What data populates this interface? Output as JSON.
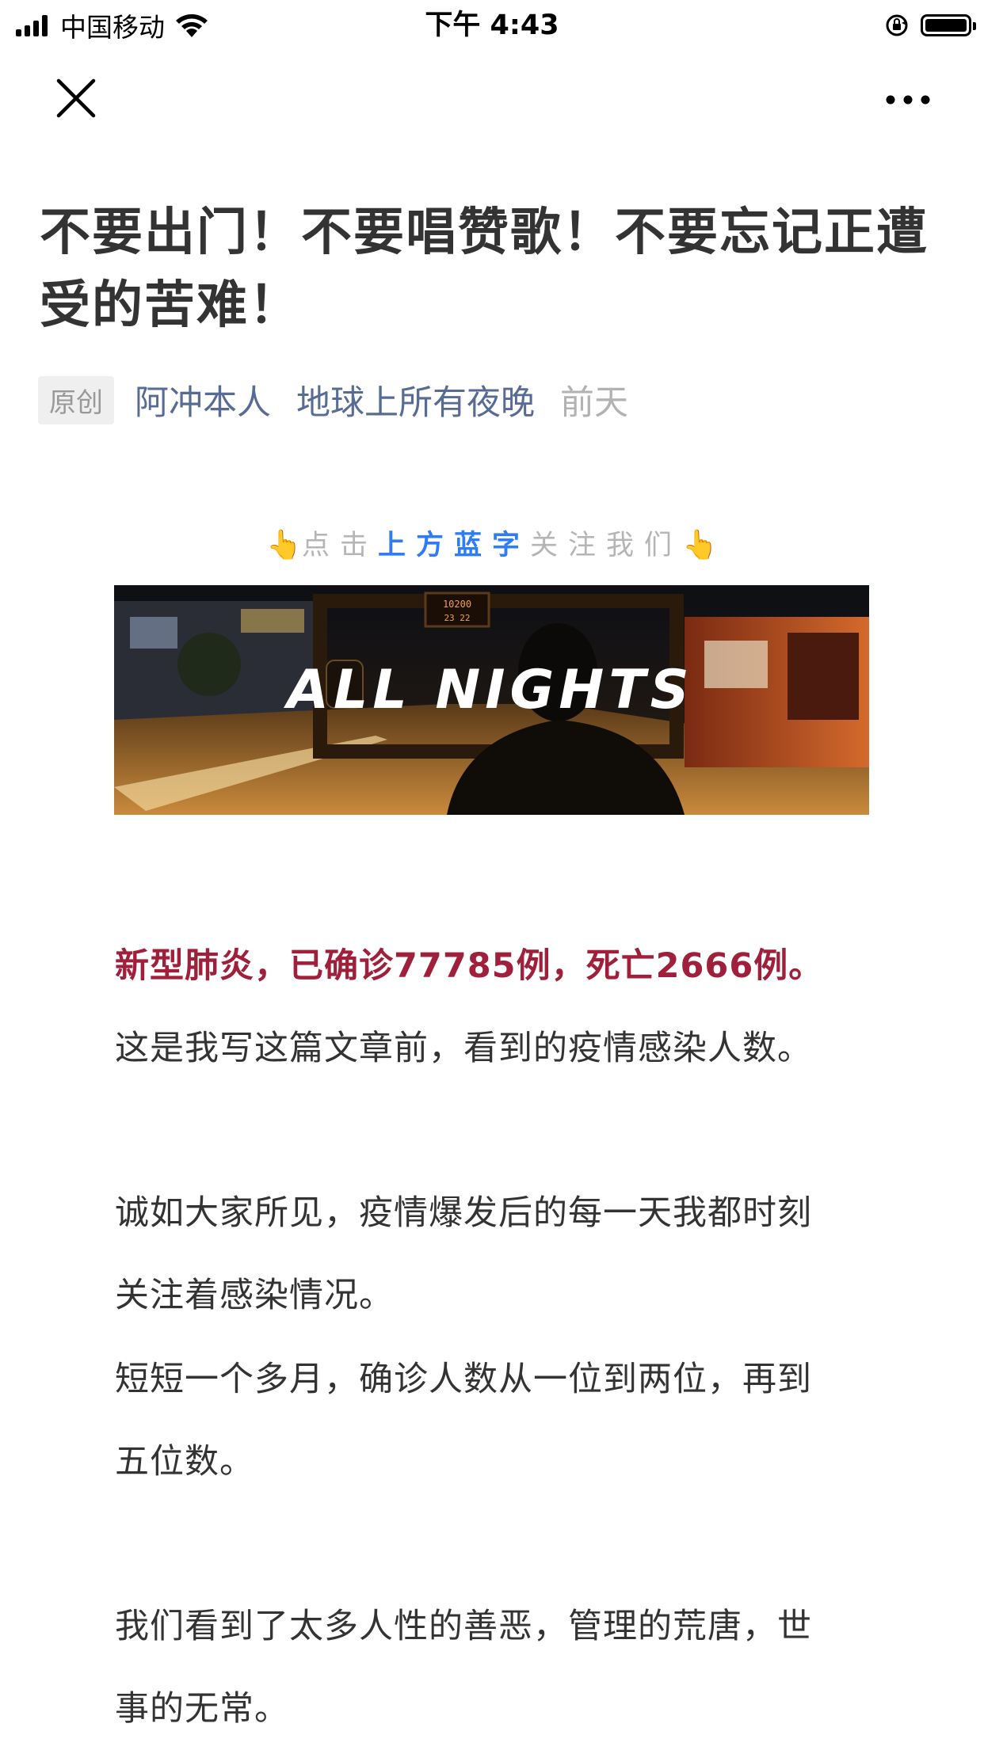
{
  "status_bar": {
    "carrier": "中国移动",
    "time": "下午 4:43"
  },
  "nav": {
    "close_icon": "close-icon",
    "more_icon": "more-horizontal-icon"
  },
  "article": {
    "title": "不要出门！不要唱赞歌！不要忘记正遭受的苦难！",
    "badge": "原创",
    "author": "阿冲本人",
    "account": "地球上所有夜晚",
    "date": "前天"
  },
  "follow_prompt": {
    "before": "点击",
    "highlight": "上方蓝字",
    "after": "关注我们",
    "hand_icon": "👆"
  },
  "banner": {
    "text": "ALL NIGHTS",
    "sign_top": "10200",
    "sign_bottom": "23  22"
  },
  "paragraphs": [
    {
      "text": "新型肺炎，已确诊77785例，死亡2666例。",
      "style": "highlight"
    },
    {
      "text": "这是我写这篇文章前，看到的疫情感染人数。",
      "style": "normal"
    },
    {
      "text": "诚如大家所见，疫情爆发后的每一天我都时刻",
      "style": "normal"
    },
    {
      "text": "关注着感染情况。",
      "style": "normal"
    },
    {
      "text": "短短一个多月，确诊人数从一位到两位，再到",
      "style": "normal"
    },
    {
      "text": "五位数。",
      "style": "normal"
    },
    {
      "text": "我们看到了太多人性的善恶，管理的荒唐，世",
      "style": "normal"
    },
    {
      "text": "事的无常。",
      "style": "normal"
    }
  ],
  "colors": {
    "link_blue": "#576b95",
    "highlight_red": "#a01f3a",
    "follow_blue": "#2e7cf6",
    "text": "#333333",
    "muted": "#b2b2b2"
  }
}
